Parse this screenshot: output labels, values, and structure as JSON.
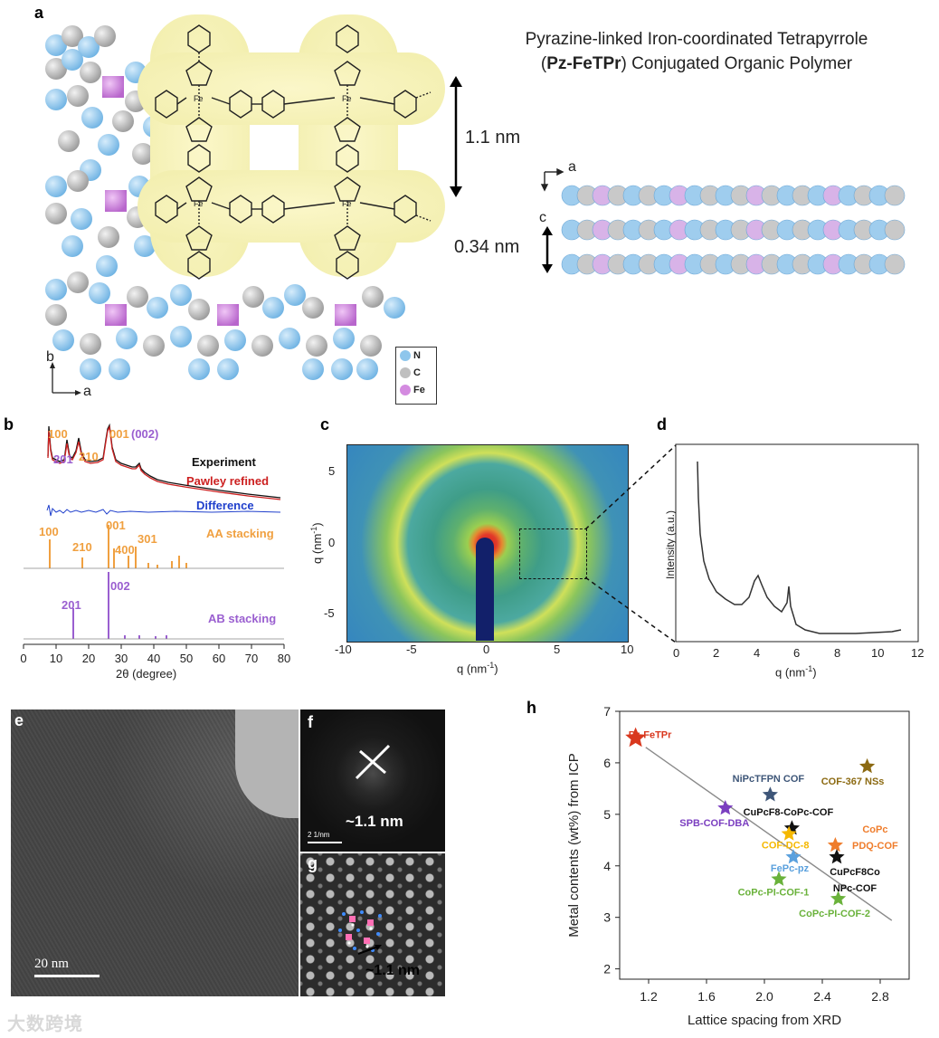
{
  "panels": {
    "a": "a",
    "b": "b",
    "c": "c",
    "d": "d",
    "e": "e",
    "f": "f",
    "g": "g",
    "h": "h"
  },
  "panel_a": {
    "title_line1": "Pyrazine-linked Iron-coordinated Tetrapyrrole",
    "title_line2_open": "(",
    "title_line2_bold": "Pz-FeTPr",
    "title_line2_rest": ") Conjugated Organic Polymer",
    "dim_pore": "1.1 nm",
    "dim_stack": "0.34 nm",
    "axis_b": "b",
    "axis_a": "a",
    "side_axis_a": "a",
    "side_axis_c": "c",
    "fe_label": "Fe",
    "n_label": "N",
    "legend": [
      {
        "label": "N",
        "color": "#8ec6ec"
      },
      {
        "label": "C",
        "color": "#bfbfbf"
      },
      {
        "label": "Fe",
        "color": "#d48be0"
      }
    ]
  },
  "panel_b": {
    "peaks_top": [
      "100",
      "201",
      "210",
      "001",
      "(002)"
    ],
    "legend": [
      "Experiment",
      "Pawley refined",
      "Difference"
    ],
    "aa_peaks": [
      "100",
      "210",
      "001",
      "400",
      "301"
    ],
    "aa_label": "AA stacking",
    "ab_peaks": [
      "201",
      "002"
    ],
    "ab_label": "AB stacking",
    "xticks": [
      "0",
      "10",
      "20",
      "30",
      "40",
      "50",
      "60",
      "70",
      "80"
    ],
    "xlabel": "2θ (degree)",
    "colors": {
      "experiment": "#111111",
      "pawley": "#cc1f1f",
      "difference": "#1f3fcc",
      "aa": "#f0a040",
      "ab": "#9a5fd0"
    }
  },
  "panel_c": {
    "yticks": [
      "5",
      "0",
      "-5"
    ],
    "xticks": [
      "-10",
      "-5",
      "0",
      "5",
      "10"
    ],
    "xlabel": "q (nm",
    "ylabel": "q (nm",
    "unit_exp": "-1",
    "close": ")"
  },
  "panel_d": {
    "xticks": [
      "0",
      "2",
      "4",
      "6",
      "8",
      "10",
      "12"
    ],
    "xlabel": "q (nm",
    "ylabel": "Intensity (a.u.)",
    "unit_exp": "-1",
    "close": ")"
  },
  "panel_e": {
    "scale": "20 nm"
  },
  "panel_f": {
    "spacing": "~1.1 nm",
    "scale": "2 1/nm"
  },
  "panel_g": {
    "spacing": "~1.1 nm"
  },
  "watermark": "大数跨境",
  "chart_data": {
    "type": "scatter",
    "title": "",
    "xlabel": "Lattice spacing from XRD",
    "ylabel": "Metal contents (wt%) from ICP",
    "xlim": [
      1.0,
      3.0
    ],
    "ylim": [
      1.8,
      7.0
    ],
    "xticks": [
      "1.2",
      "1.6",
      "2.0",
      "2.4",
      "2.8"
    ],
    "yticks": [
      "2",
      "3",
      "4",
      "5",
      "6",
      "7"
    ],
    "grid": false,
    "marker": "star",
    "points": [
      {
        "label": "Pz-FeTPr",
        "x": 1.11,
        "y": 6.48,
        "color": "#d9381e"
      },
      {
        "label": "NiPcTFPN COF",
        "x": 2.04,
        "y": 5.38,
        "color": "#3e5678"
      },
      {
        "label": "COF-367 NSs",
        "x": 2.71,
        "y": 5.93,
        "color": "#8c6a12"
      },
      {
        "label": "SPB-COF-DBA",
        "x": 1.73,
        "y": 5.12,
        "color": "#7b3fc0"
      },
      {
        "label": "CuPcF8-CoPc-COF",
        "x": 2.19,
        "y": 4.73,
        "color": "#111111"
      },
      {
        "label": "COF-DC-8",
        "x": 2.17,
        "y": 4.62,
        "color": "#f5b800"
      },
      {
        "label": "CoPc PDQ-COF",
        "x": 2.49,
        "y": 4.4,
        "color": "#ef7d2c"
      },
      {
        "label": "FePc-pz",
        "x": 2.2,
        "y": 4.17,
        "color": "#5aa0dd"
      },
      {
        "label": "CuPcF8Co NPc-COF",
        "x": 2.5,
        "y": 4.17,
        "color": "#111111"
      },
      {
        "label": "CoPc-PI-COF-1",
        "x": 2.1,
        "y": 3.74,
        "color": "#6ab23b"
      },
      {
        "label": "CoPc-PI-COF-2",
        "x": 2.51,
        "y": 3.36,
        "color": "#6ab23b"
      }
    ],
    "labels": [
      {
        "text": "Pz-FeTPr",
        "color": "#d9381e"
      },
      {
        "text": "NiPcTFPN COF",
        "color": "#3e5678"
      },
      {
        "text": "COF-367 NSs",
        "color": "#8c6a12"
      },
      {
        "text": "SPB-COF-DBA",
        "color": "#7b3fc0"
      },
      {
        "text": "CuPcF8-CoPc-COF",
        "color": "#111111"
      },
      {
        "text": "COF-DC-8",
        "color": "#f5b800"
      },
      {
        "text": "CoPc",
        "color": "#ef7d2c"
      },
      {
        "text": "PDQ-COF",
        "color": "#ef7d2c"
      },
      {
        "text": "FePc-pz",
        "color": "#5aa0dd"
      },
      {
        "text": "CuPcF8Co",
        "color": "#111111"
      },
      {
        "text": "NPc-COF",
        "color": "#111111"
      },
      {
        "text": "CoPc-PI-COF-1",
        "color": "#6ab23b"
      },
      {
        "text": "CoPc-PI-COF-2",
        "color": "#6ab23b"
      }
    ],
    "trend_line": {
      "x": [
        1.18,
        2.88
      ],
      "y": [
        6.3,
        2.94
      ]
    }
  }
}
